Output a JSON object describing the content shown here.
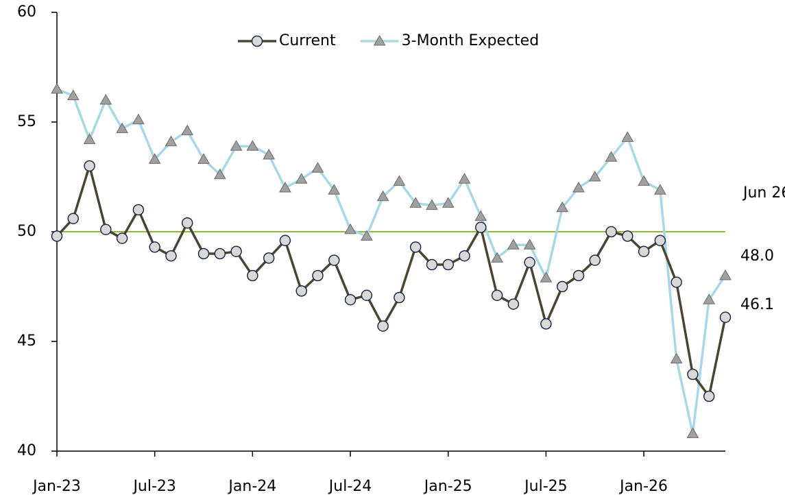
{
  "chart_data": {
    "type": "line",
    "categories": [
      "Jan-23",
      null,
      null,
      null,
      null,
      null,
      "Jul-23",
      null,
      null,
      null,
      null,
      null,
      "Jan-24",
      null,
      null,
      null,
      null,
      null,
      "Jul-24",
      null,
      null,
      null,
      null,
      null,
      "Jan-25",
      null,
      null,
      null,
      null,
      null,
      "Jul-25",
      null,
      null,
      null,
      null,
      null,
      "Jan-26",
      null,
      null,
      null,
      null,
      null
    ],
    "series": [
      {
        "name": "Current",
        "color": "#4a4530",
        "marker": "circle",
        "marker_color": "#d9d9d9",
        "values": [
          49.8,
          50.6,
          53.0,
          50.1,
          49.7,
          51.0,
          49.3,
          48.9,
          50.4,
          49.0,
          49.0,
          49.1,
          48.0,
          48.8,
          49.6,
          47.3,
          48.0,
          48.7,
          46.9,
          47.1,
          45.7,
          47.0,
          49.3,
          48.5,
          48.5,
          48.9,
          50.2,
          47.1,
          46.7,
          48.6,
          45.8,
          47.5,
          48.0,
          48.7,
          50.0,
          49.8,
          49.1,
          49.6,
          47.7,
          43.5,
          42.5,
          46.1
        ],
        "value_labels": [
          null,
          null,
          null,
          null,
          null,
          null,
          null,
          null,
          null,
          null,
          null,
          null,
          null,
          null,
          null,
          null,
          null,
          null,
          null,
          null,
          null,
          null,
          null,
          null,
          null,
          null,
          null,
          null,
          null,
          null,
          null,
          null,
          null,
          null,
          null,
          null,
          null,
          null,
          null,
          null,
          null,
          "46.1"
        ]
      },
      {
        "name": "3-Month Expected",
        "color": "#a8d8e8",
        "marker": "triangle",
        "marker_color": "#a0a0a0",
        "values": [
          56.5,
          56.2,
          54.2,
          56.0,
          54.7,
          55.1,
          53.3,
          54.1,
          54.6,
          53.3,
          52.6,
          53.9,
          53.9,
          53.5,
          52.0,
          52.4,
          52.9,
          51.9,
          50.1,
          49.8,
          51.6,
          52.3,
          51.3,
          51.2,
          51.3,
          52.4,
          50.7,
          48.8,
          49.4,
          49.4,
          47.9,
          51.1,
          52.0,
          52.5,
          53.4,
          54.3,
          52.3,
          51.9,
          44.2,
          40.8,
          46.9,
          48.0
        ],
        "value_labels": [
          null,
          null,
          null,
          null,
          null,
          null,
          null,
          null,
          null,
          null,
          null,
          null,
          null,
          null,
          null,
          null,
          null,
          null,
          null,
          null,
          null,
          null,
          null,
          null,
          null,
          null,
          null,
          null,
          null,
          null,
          null,
          null,
          null,
          null,
          null,
          null,
          null,
          null,
          null,
          null,
          null,
          "48.0"
        ]
      }
    ],
    "reference_line": {
      "value": 50,
      "color": "#8dba3c"
    },
    "annotation": "Jun 26",
    "ylim": [
      40,
      60
    ],
    "yticks": [
      40,
      45,
      50,
      55,
      60
    ],
    "grid": false,
    "legend": "top"
  }
}
